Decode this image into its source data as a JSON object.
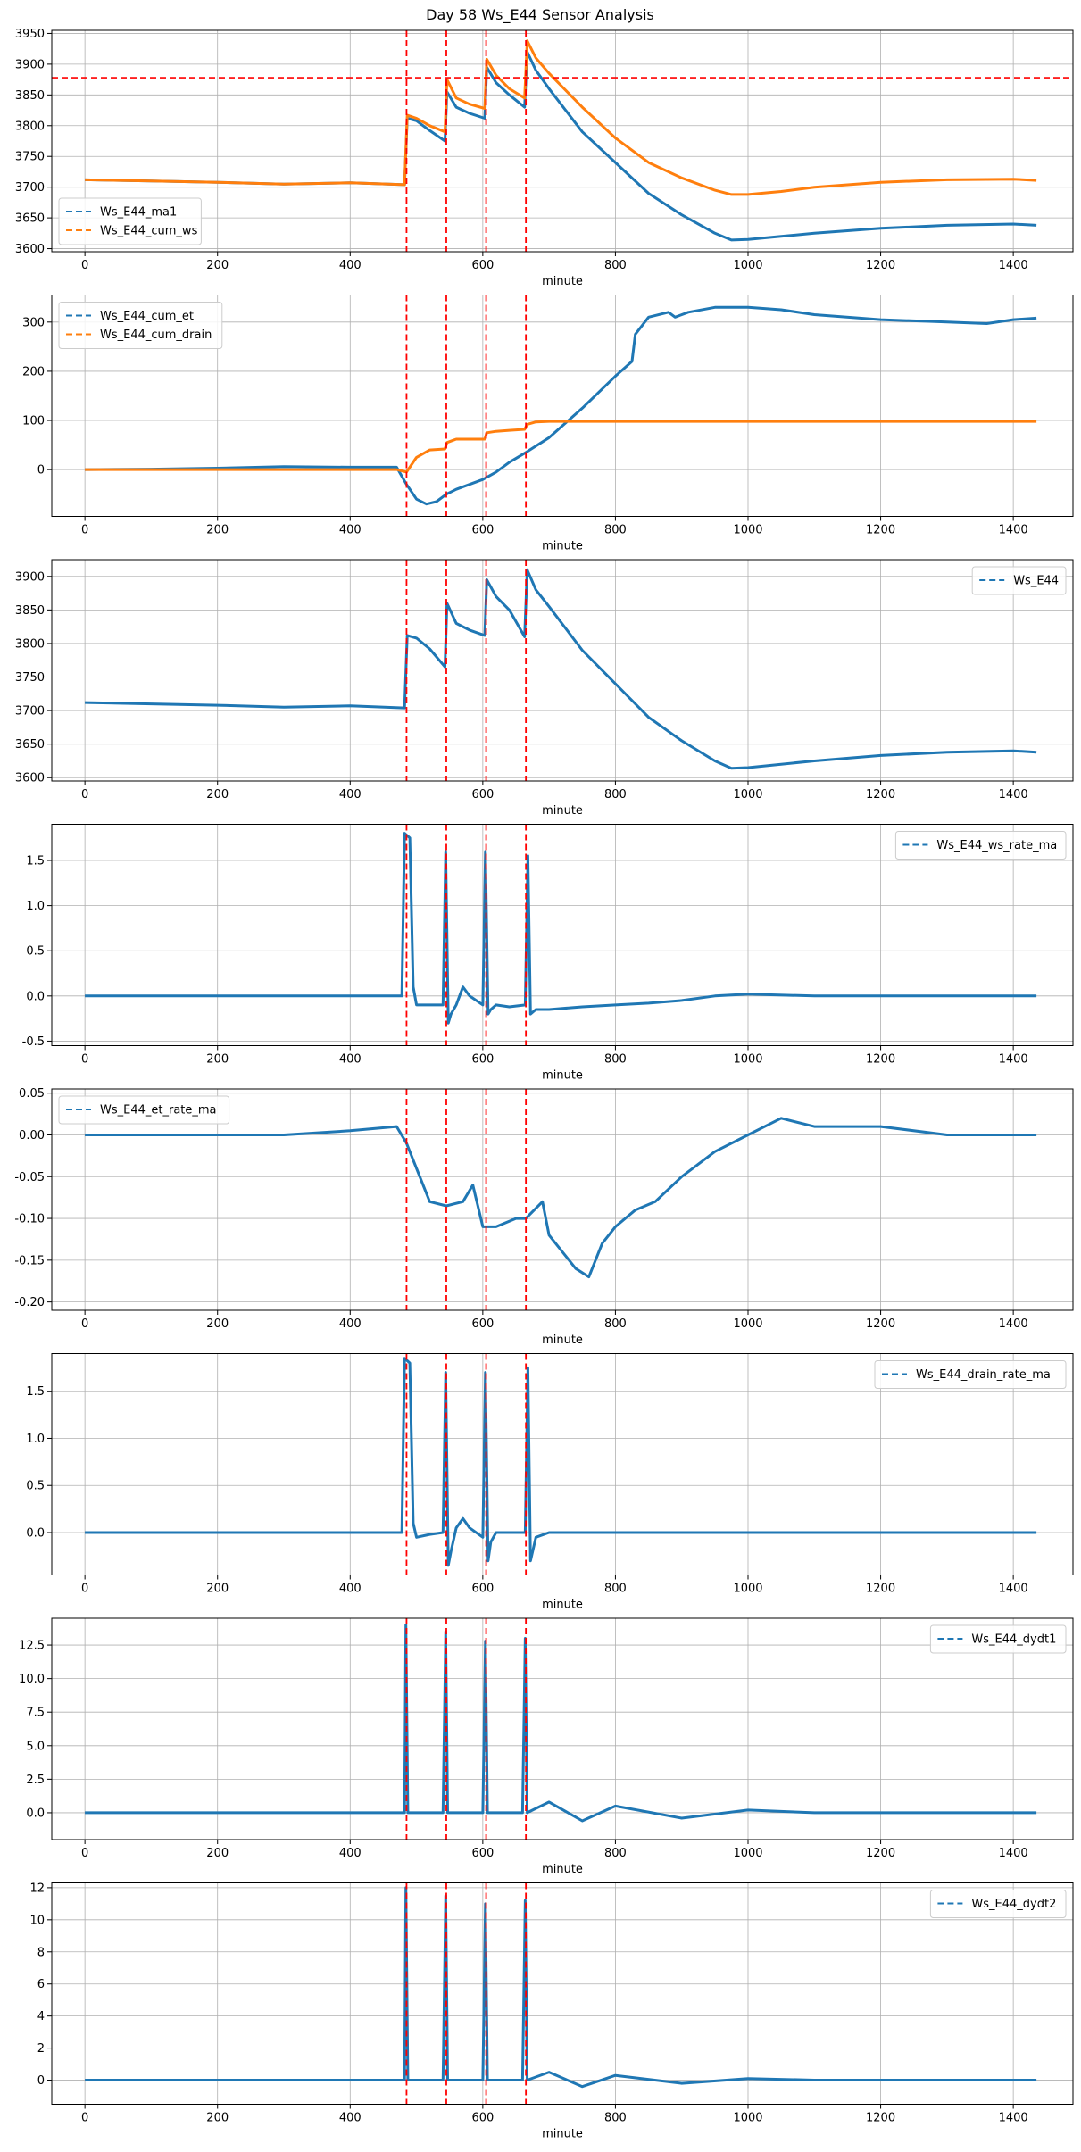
{
  "figure": {
    "title": "Day 58 Ws_E44 Sensor Analysis"
  },
  "chart_data": [
    {
      "type": "line",
      "xlabel": "minute",
      "ylabel": "",
      "xlim": [
        -50,
        1490
      ],
      "ylim": [
        3595,
        3955
      ],
      "xticks": [
        0,
        200,
        400,
        600,
        800,
        1000,
        1200,
        1400
      ],
      "yticks": [
        3600,
        3650,
        3700,
        3750,
        3800,
        3850,
        3900,
        3950
      ],
      "grid": true,
      "legend": "lower-left",
      "event_lines_x": [
        485,
        545,
        605,
        665
      ],
      "hline_y": 3878,
      "series": [
        {
          "name": "Ws_E44_ma1",
          "color": "#1f77b4",
          "x": [
            0,
            100,
            200,
            300,
            400,
            482,
            486,
            500,
            520,
            543,
            546,
            560,
            580,
            603,
            606,
            620,
            640,
            663,
            667,
            680,
            700,
            750,
            800,
            850,
            900,
            950,
            975,
            1000,
            1050,
            1100,
            1200,
            1300,
            1400,
            1435
          ],
          "y": [
            3712,
            3710,
            3708,
            3705,
            3707,
            3704,
            3812,
            3808,
            3792,
            3775,
            3855,
            3830,
            3820,
            3812,
            3895,
            3870,
            3850,
            3830,
            3920,
            3890,
            3860,
            3790,
            3740,
            3690,
            3655,
            3625,
            3614,
            3615,
            3620,
            3625,
            3633,
            3638,
            3640,
            3638
          ]
        },
        {
          "name": "Ws_E44_cum_ws",
          "color": "#ff7f0e",
          "x": [
            0,
            100,
            200,
            300,
            400,
            482,
            486,
            500,
            520,
            543,
            546,
            560,
            580,
            603,
            606,
            620,
            640,
            663,
            667,
            680,
            700,
            750,
            800,
            850,
            900,
            950,
            975,
            1000,
            1050,
            1100,
            1200,
            1300,
            1400,
            1435
          ],
          "y": [
            3712,
            3710,
            3708,
            3705,
            3707,
            3704,
            3817,
            3812,
            3800,
            3790,
            3875,
            3845,
            3835,
            3828,
            3908,
            3882,
            3860,
            3845,
            3938,
            3910,
            3885,
            3830,
            3780,
            3740,
            3715,
            3695,
            3688,
            3688,
            3693,
            3700,
            3708,
            3712,
            3713,
            3711
          ]
        }
      ]
    },
    {
      "type": "line",
      "xlabel": "minute",
      "ylabel": "",
      "xlim": [
        -50,
        1490
      ],
      "ylim": [
        -95,
        355
      ],
      "xticks": [
        0,
        200,
        400,
        600,
        800,
        1000,
        1200,
        1400
      ],
      "yticks": [
        0,
        100,
        200,
        300
      ],
      "grid": true,
      "legend": "top-left",
      "event_lines_x": [
        485,
        545,
        605,
        665
      ],
      "series": [
        {
          "name": "Ws_E44_cum_et",
          "color": "#1f77b4",
          "x": [
            0,
            100,
            200,
            300,
            400,
            470,
            485,
            500,
            515,
            530,
            545,
            560,
            580,
            600,
            620,
            640,
            665,
            700,
            750,
            800,
            825,
            830,
            850,
            880,
            890,
            910,
            950,
            1000,
            1050,
            1100,
            1200,
            1300,
            1360,
            1400,
            1435
          ],
          "y": [
            0,
            1,
            3,
            6,
            5,
            5,
            -30,
            -60,
            -70,
            -65,
            -50,
            -40,
            -30,
            -20,
            -5,
            15,
            35,
            65,
            125,
            190,
            220,
            275,
            310,
            320,
            310,
            320,
            330,
            330,
            325,
            315,
            305,
            300,
            297,
            305,
            308
          ]
        },
        {
          "name": "Ws_E44_cum_drain",
          "color": "#ff7f0e",
          "x": [
            0,
            100,
            200,
            300,
            400,
            470,
            485,
            500,
            520,
            543,
            546,
            560,
            580,
            603,
            606,
            620,
            640,
            663,
            667,
            680,
            700,
            1000,
            1435
          ],
          "y": [
            0,
            0,
            0,
            0,
            0,
            0,
            -5,
            25,
            40,
            42,
            55,
            62,
            62,
            62,
            75,
            78,
            80,
            82,
            92,
            97,
            98,
            98,
            98
          ]
        }
      ]
    },
    {
      "type": "line",
      "xlabel": "minute",
      "ylabel": "",
      "xlim": [
        -50,
        1490
      ],
      "ylim": [
        3595,
        3925
      ],
      "xticks": [
        0,
        200,
        400,
        600,
        800,
        1000,
        1200,
        1400
      ],
      "yticks": [
        3600,
        3650,
        3700,
        3750,
        3800,
        3850,
        3900
      ],
      "grid": true,
      "legend": "top-right",
      "event_lines_x": [
        485,
        545,
        605,
        665
      ],
      "series": [
        {
          "name": "Ws_E44",
          "color": "#1f77b4",
          "x": [
            0,
            100,
            200,
            300,
            400,
            482,
            486,
            500,
            520,
            543,
            546,
            560,
            580,
            603,
            606,
            620,
            640,
            663,
            667,
            680,
            700,
            750,
            800,
            850,
            900,
            950,
            975,
            1000,
            1050,
            1100,
            1200,
            1300,
            1400,
            1435
          ],
          "y": [
            3712,
            3710,
            3708,
            3705,
            3707,
            3704,
            3812,
            3808,
            3792,
            3765,
            3860,
            3830,
            3820,
            3812,
            3895,
            3870,
            3850,
            3810,
            3910,
            3880,
            3855,
            3790,
            3740,
            3690,
            3655,
            3625,
            3614,
            3615,
            3620,
            3625,
            3633,
            3638,
            3640,
            3638
          ]
        }
      ]
    },
    {
      "type": "line",
      "xlabel": "minute",
      "ylabel": "",
      "xlim": [
        -50,
        1490
      ],
      "ylim": [
        -0.55,
        1.9
      ],
      "xticks": [
        0,
        200,
        400,
        600,
        800,
        1000,
        1200,
        1400
      ],
      "yticks": [
        -0.5,
        0.0,
        0.5,
        1.0,
        1.5
      ],
      "grid": true,
      "legend": "top-right",
      "event_lines_x": [
        485,
        545,
        605,
        665
      ],
      "series": [
        {
          "name": "Ws_E44_ws_rate_ma",
          "color": "#1f77b4",
          "x": [
            0,
            100,
            200,
            300,
            400,
            470,
            478,
            482,
            490,
            495,
            500,
            520,
            540,
            544,
            548,
            552,
            560,
            570,
            580,
            600,
            604,
            608,
            612,
            620,
            640,
            664,
            668,
            672,
            680,
            700,
            750,
            800,
            850,
            900,
            950,
            1000,
            1100,
            1200,
            1300,
            1400,
            1435
          ],
          "y": [
            0,
            0,
            0,
            0,
            0,
            0,
            0,
            1.8,
            1.75,
            0.1,
            -0.1,
            -0.1,
            -0.1,
            1.6,
            -0.3,
            -0.2,
            -0.1,
            0.1,
            0,
            -0.1,
            1.6,
            -0.2,
            -0.15,
            -0.1,
            -0.12,
            -0.1,
            1.55,
            -0.2,
            -0.15,
            -0.15,
            -0.12,
            -0.1,
            -0.08,
            -0.05,
            0,
            0.02,
            0,
            0,
            0,
            0,
            0
          ]
        }
      ]
    },
    {
      "type": "line",
      "xlabel": "minute",
      "ylabel": "",
      "xlim": [
        -50,
        1490
      ],
      "ylim": [
        -0.21,
        0.055
      ],
      "xticks": [
        0,
        200,
        400,
        600,
        800,
        1000,
        1200,
        1400
      ],
      "yticks": [
        -0.2,
        -0.15,
        -0.1,
        -0.05,
        0.0,
        0.05
      ],
      "grid": true,
      "legend": "top-left",
      "event_lines_x": [
        485,
        545,
        605,
        665
      ],
      "series": [
        {
          "name": "Ws_E44_et_rate_ma",
          "color": "#1f77b4",
          "x": [
            0,
            100,
            200,
            300,
            400,
            470,
            485,
            520,
            545,
            570,
            585,
            600,
            620,
            650,
            665,
            690,
            700,
            720,
            740,
            760,
            780,
            800,
            830,
            860,
            900,
            950,
            1000,
            1050,
            1100,
            1200,
            1300,
            1400,
            1435
          ],
          "y": [
            0,
            0,
            0,
            0,
            0.005,
            0.01,
            -0.01,
            -0.08,
            -0.085,
            -0.08,
            -0.06,
            -0.11,
            -0.11,
            -0.1,
            -0.1,
            -0.08,
            -0.12,
            -0.14,
            -0.16,
            -0.17,
            -0.13,
            -0.11,
            -0.09,
            -0.08,
            -0.05,
            -0.02,
            0,
            0.02,
            0.01,
            0.01,
            0.0,
            0.0,
            0.0
          ]
        }
      ]
    },
    {
      "type": "line",
      "xlabel": "minute",
      "ylabel": "",
      "xlim": [
        -50,
        1490
      ],
      "ylim": [
        -0.45,
        1.9
      ],
      "xticks": [
        0,
        200,
        400,
        600,
        800,
        1000,
        1200,
        1400
      ],
      "yticks": [
        0.0,
        0.5,
        1.0,
        1.5
      ],
      "grid": true,
      "legend": "top-right",
      "event_lines_x": [
        485,
        545,
        605,
        665
      ],
      "series": [
        {
          "name": "Ws_E44_drain_rate_ma",
          "color": "#1f77b4",
          "x": [
            0,
            100,
            200,
            300,
            400,
            470,
            478,
            482,
            490,
            495,
            500,
            520,
            540,
            544,
            548,
            552,
            560,
            570,
            580,
            600,
            604,
            608,
            612,
            620,
            640,
            664,
            668,
            672,
            680,
            700,
            800,
            900,
            1000,
            1100,
            1200,
            1300,
            1400,
            1435
          ],
          "y": [
            0,
            0,
            0,
            0,
            0,
            0,
            0,
            1.85,
            1.8,
            0.1,
            -0.05,
            -0.02,
            0,
            1.7,
            -0.35,
            -0.2,
            0.05,
            0.15,
            0.05,
            -0.05,
            1.7,
            -0.3,
            -0.1,
            0,
            0,
            0,
            1.75,
            -0.3,
            -0.05,
            0,
            0,
            0,
            0,
            0,
            0,
            0,
            0,
            0
          ]
        }
      ]
    },
    {
      "type": "line",
      "xlabel": "minute",
      "ylabel": "",
      "xlim": [
        -50,
        1490
      ],
      "ylim": [
        -2.0,
        14.5
      ],
      "xticks": [
        0,
        200,
        400,
        600,
        800,
        1000,
        1200,
        1400
      ],
      "yticks": [
        0.0,
        2.5,
        5.0,
        7.5,
        10.0,
        12.5
      ],
      "grid": true,
      "legend": "top-right",
      "event_lines_x": [
        485,
        545,
        605,
        665
      ],
      "series": [
        {
          "name": "Ws_E44_dydt1",
          "color": "#1f77b4",
          "x": [
            0,
            100,
            200,
            300,
            400,
            482,
            484,
            487,
            540,
            544,
            547,
            600,
            604,
            607,
            660,
            664,
            667,
            700,
            750,
            800,
            900,
            1000,
            1100,
            1200,
            1300,
            1400,
            1435
          ],
          "y": [
            0,
            0,
            0,
            0,
            0,
            0,
            14,
            0,
            0,
            13.5,
            0,
            0,
            12.8,
            0,
            0,
            13,
            0,
            0.8,
            -0.6,
            0.5,
            -0.4,
            0.2,
            0,
            0,
            0,
            0,
            0
          ]
        }
      ]
    },
    {
      "type": "line",
      "xlabel": "minute",
      "ylabel": "",
      "xlim": [
        -50,
        1490
      ],
      "ylim": [
        -1.5,
        12.3
      ],
      "xticks": [
        0,
        200,
        400,
        600,
        800,
        1000,
        1200,
        1400
      ],
      "yticks": [
        0,
        2,
        4,
        6,
        8,
        10,
        12
      ],
      "grid": true,
      "legend": "top-right",
      "event_lines_x": [
        485,
        545,
        605,
        665
      ],
      "series": [
        {
          "name": "Ws_E44_dydt2",
          "color": "#1f77b4",
          "x": [
            0,
            100,
            200,
            300,
            400,
            482,
            484,
            487,
            540,
            544,
            547,
            600,
            604,
            607,
            660,
            664,
            667,
            700,
            750,
            800,
            900,
            1000,
            1100,
            1200,
            1300,
            1400,
            1435
          ],
          "y": [
            0,
            0,
            0,
            0,
            0,
            0,
            12,
            0,
            0,
            11.5,
            0,
            0,
            11,
            0,
            0,
            11.2,
            0,
            0.5,
            -0.4,
            0.3,
            -0.2,
            0.1,
            0,
            0,
            0,
            0,
            0
          ]
        }
      ]
    }
  ]
}
